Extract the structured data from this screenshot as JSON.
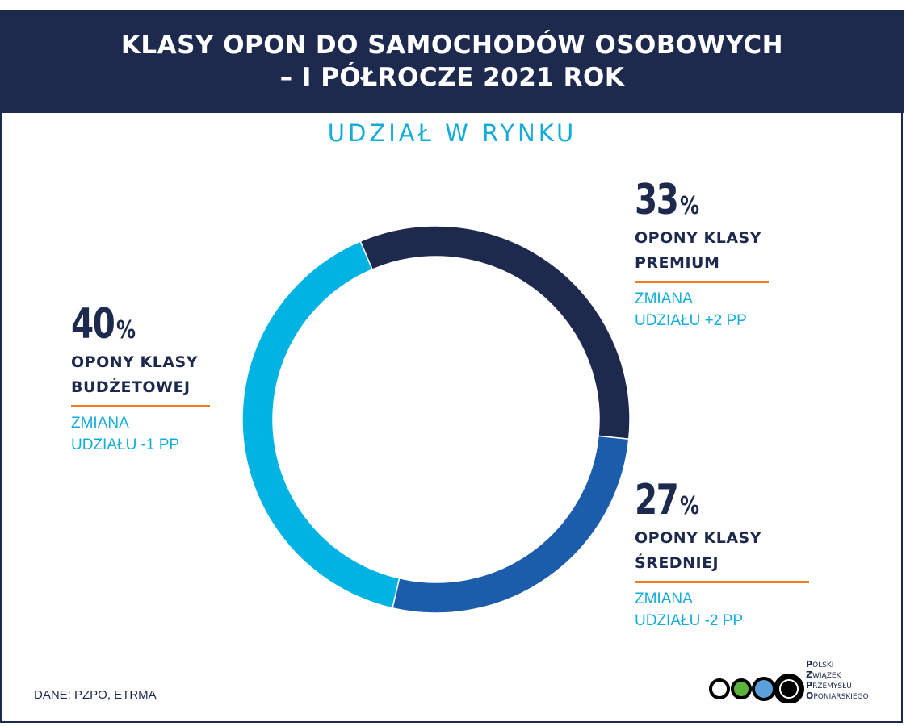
{
  "header": {
    "line1": "KLASY OPON DO SAMOCHODÓW OSOBOWYCH",
    "line2": "–  I PÓŁROCZE 2021 ROK"
  },
  "subtitle": "UDZIAŁ W RYNKU",
  "chart_data": {
    "type": "pie",
    "variant": "donut",
    "title": "",
    "categories": [
      "OPONY KLASY PREMIUM",
      "OPONY KLASY ŚREDNIEJ",
      "OPONY KLASY BUDŻETOWEJ"
    ],
    "values": [
      33,
      27,
      40
    ],
    "unit": "%",
    "colors": [
      "#1d2a4d",
      "#1b5dab",
      "#00b3e3"
    ],
    "segments": [
      {
        "key": "premium",
        "value": 33,
        "pct_text": "33",
        "unit_text": "%",
        "class_line1": "OPONY KLASY",
        "class_line2": "PREMIUM",
        "change_line1": "ZMIANA",
        "change_line2": "UDZIAŁU +2 PP",
        "color": "#1d2a4d"
      },
      {
        "key": "srednia",
        "value": 27,
        "pct_text": "27",
        "unit_text": "%",
        "class_line1": "OPONY KLASY",
        "class_line2": "ŚREDNIEJ",
        "change_line1": "ZMIANA",
        "change_line2": "UDZIAŁU -2 PP",
        "color": "#1b5dab"
      },
      {
        "key": "budzetowa",
        "value": 40,
        "pct_text": "40",
        "unit_text": "%",
        "class_line1": "OPONY KLASY",
        "class_line2": "BUDŻETOWEJ",
        "change_line1": "ZMIANA",
        "change_line2": "UDZIAŁU -1 PP",
        "color": "#00b3e3"
      }
    ]
  },
  "source": "DANE: PZPO, ETRMA",
  "logo": {
    "lines": [
      {
        "initial": "P",
        "rest": "OLSKI"
      },
      {
        "initial": "Z",
        "rest": "WIĄZEK"
      },
      {
        "initial": "P",
        "rest": "RZEMYSŁU"
      },
      {
        "initial": "O",
        "rest": "PONIARSKIEGO"
      }
    ],
    "circle_colors": [
      "#ffffff",
      "#5cb33a",
      "#5aa0dc",
      "#000000"
    ]
  }
}
